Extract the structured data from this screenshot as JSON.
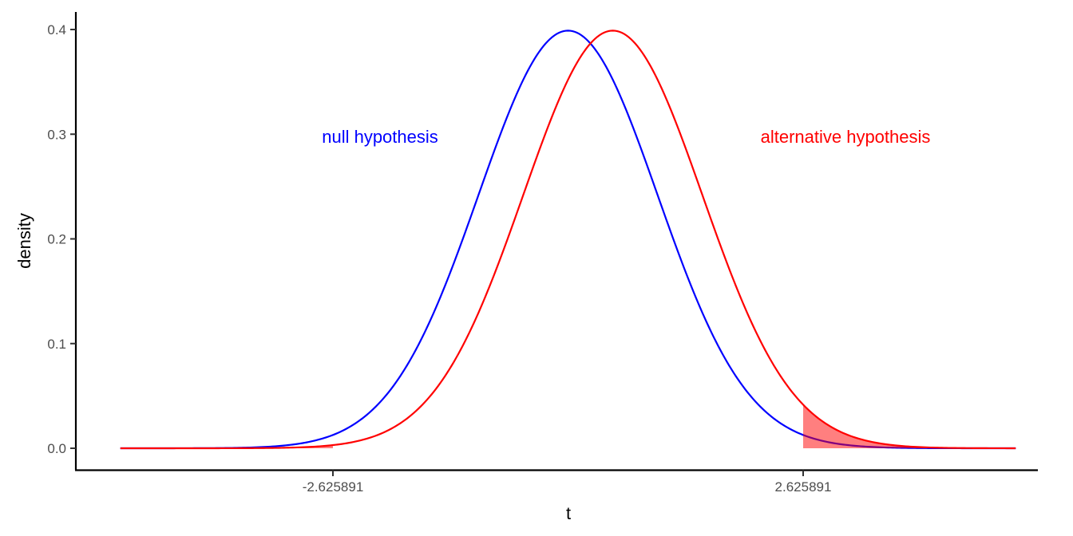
{
  "chart_data": {
    "type": "line",
    "title": "",
    "xlabel": "t",
    "ylabel": "density",
    "xlim": [
      -5,
      5
    ],
    "ylim": [
      0,
      0.4
    ],
    "grid": false,
    "legend": "none (inline text annotations)",
    "x_ticks": [
      {
        "value": -2.625891,
        "label": "-2.625891"
      },
      {
        "value": 2.625891,
        "label": "2.625891"
      }
    ],
    "y_ticks": [
      {
        "value": 0.0,
        "label": "0.0"
      },
      {
        "value": 0.1,
        "label": "0.1"
      },
      {
        "value": 0.2,
        "label": "0.2"
      },
      {
        "value": 0.3,
        "label": "0.3"
      },
      {
        "value": 0.4,
        "label": "0.4"
      }
    ],
    "series": [
      {
        "name": "null hypothesis",
        "distribution": "t-density centered at 0",
        "center": 0,
        "peak": 0.399,
        "color": "#0000FF"
      },
      {
        "name": "alternative hypothesis",
        "distribution": "t-density shifted",
        "center": 0.5,
        "peak": 0.399,
        "color": "#FF0000"
      }
    ],
    "shaded_regions": [
      {
        "series": "alternative hypothesis",
        "from": -5,
        "to": -2.625891,
        "color": "#FF0000",
        "alpha": 0.5
      },
      {
        "series": "alternative hypothesis",
        "from": 2.625891,
        "to": 5,
        "color": "#FF0000",
        "alpha": 0.5
      }
    ],
    "annotations": [
      {
        "text": "null hypothesis",
        "x": -2.1,
        "y": 0.295,
        "color": "#0000FF"
      },
      {
        "text": "alternative hypothesis",
        "x": 3.1,
        "y": 0.295,
        "color": "#FF0000"
      }
    ]
  },
  "labels": {
    "xlabel": "t",
    "ylabel": "density",
    "x_ticks": [
      "-2.625891",
      "2.625891"
    ],
    "y_ticks": [
      "0.0",
      "0.1",
      "0.2",
      "0.3",
      "0.4"
    ],
    "null_annotation": "null hypothesis",
    "alt_annotation": "alternative hypothesis"
  }
}
